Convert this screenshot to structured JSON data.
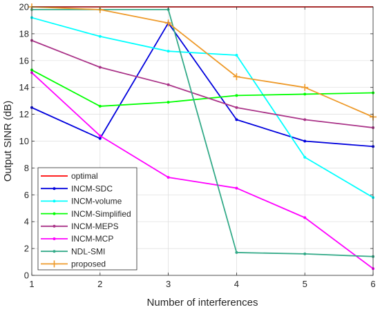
{
  "chart_data": {
    "type": "line",
    "title": "",
    "xlabel": "Number of interferences",
    "ylabel": "Output SINR (dB)",
    "x": [
      1,
      2,
      3,
      4,
      5,
      6
    ],
    "xlim": [
      1,
      6
    ],
    "ylim": [
      0,
      20
    ],
    "xticks": [
      1,
      2,
      3,
      4,
      5,
      6
    ],
    "yticks": [
      0,
      2,
      4,
      6,
      8,
      10,
      12,
      14,
      16,
      18,
      20
    ],
    "grid": true,
    "legend_position": "bottom-left",
    "series": [
      {
        "name": "optimal",
        "color": "#ff0000",
        "marker": "none",
        "values": [
          20.0,
          20.0,
          20.0,
          20.0,
          20.0,
          20.0
        ]
      },
      {
        "name": "INCM-SDC",
        "color": "#0000dd",
        "marker": "dot",
        "values": [
          12.5,
          10.2,
          18.8,
          11.6,
          10.0,
          9.6
        ]
      },
      {
        "name": "INCM-volume",
        "color": "#00ffff",
        "marker": "dot",
        "values": [
          19.2,
          17.8,
          16.7,
          16.4,
          8.8,
          5.8
        ]
      },
      {
        "name": "INCM-Simplified",
        "color": "#00ff00",
        "marker": "dot",
        "values": [
          15.3,
          12.6,
          12.9,
          13.4,
          13.5,
          13.6
        ]
      },
      {
        "name": "INCM-MEPS",
        "color": "#aa3388",
        "marker": "dot",
        "values": [
          17.5,
          15.5,
          14.2,
          12.5,
          11.6,
          11.0
        ]
      },
      {
        "name": "INCM-MCP",
        "color": "#ff00ff",
        "marker": "dot",
        "values": [
          15.1,
          10.4,
          7.3,
          6.5,
          4.3,
          0.5
        ]
      },
      {
        "name": "NDL-SMI",
        "color": "#33aa88",
        "marker": "dot",
        "values": [
          19.8,
          19.8,
          19.8,
          1.7,
          1.6,
          1.4
        ]
      },
      {
        "name": "proposed",
        "color": "#ee9a2a",
        "marker": "plus",
        "values": [
          20.0,
          19.8,
          18.8,
          14.8,
          14.0,
          11.8
        ]
      }
    ]
  }
}
